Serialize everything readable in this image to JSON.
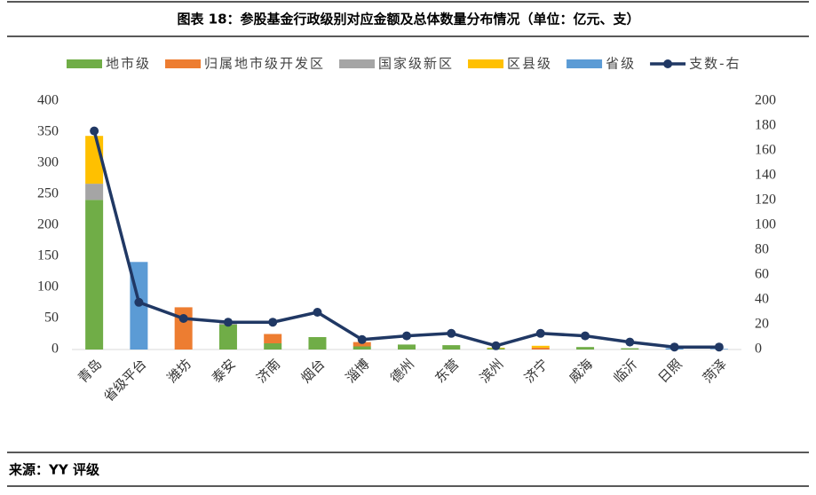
{
  "chart_data": {
    "type": "bar",
    "stacked": true,
    "title": "图表 18：参股基金行政级别对应金额及总体数量分布情况（单位：亿元、支）",
    "categories": [
      "青岛",
      "省级平台",
      "潍坊",
      "泰安",
      "济南",
      "烟台",
      "淄博",
      "德州",
      "东营",
      "滨州",
      "济宁",
      "威海",
      "临沂",
      "日照",
      "菏泽"
    ],
    "series": [
      {
        "name": "地市级",
        "color": "#70ad47",
        "values": [
          241,
          0,
          0,
          40,
          10,
          20,
          5,
          8,
          7,
          2,
          0,
          4,
          2,
          0,
          0
        ]
      },
      {
        "name": "归属地市级开发区",
        "color": "#ed7d31",
        "values": [
          0,
          0,
          68,
          0,
          15,
          0,
          7,
          0,
          0,
          0,
          3,
          0,
          0,
          0,
          0
        ]
      },
      {
        "name": "国家级新区",
        "color": "#a5a5a5",
        "values": [
          26,
          0,
          0,
          5,
          0,
          0,
          0,
          0,
          0,
          0,
          0,
          0,
          0,
          0,
          0
        ]
      },
      {
        "name": "区县级",
        "color": "#ffc000",
        "values": [
          77,
          0,
          0,
          0,
          0,
          0,
          0,
          0,
          0,
          1,
          3,
          0,
          0,
          0,
          0
        ]
      },
      {
        "name": "省级",
        "color": "#5b9bd5",
        "values": [
          0,
          141,
          0,
          0,
          0,
          0,
          0,
          0,
          0,
          0,
          0,
          0,
          0,
          2,
          1
        ]
      },
      {
        "name": "支数-右",
        "color": "#203864",
        "type": "line",
        "axis": "y2",
        "values": [
          176,
          38,
          25,
          22,
          22,
          30,
          8,
          11,
          13,
          3,
          13,
          11,
          6,
          2,
          2
        ]
      }
    ],
    "ylim": [
      0,
      400
    ],
    "yticks": [
      0,
      50,
      100,
      150,
      200,
      250,
      300,
      350,
      400
    ],
    "y2lim": [
      0,
      200
    ],
    "y2ticks": [
      0,
      20,
      40,
      60,
      80,
      100,
      120,
      140,
      160,
      180,
      200
    ],
    "grid": false,
    "legend": "top"
  },
  "source": "来源：YY 评级"
}
